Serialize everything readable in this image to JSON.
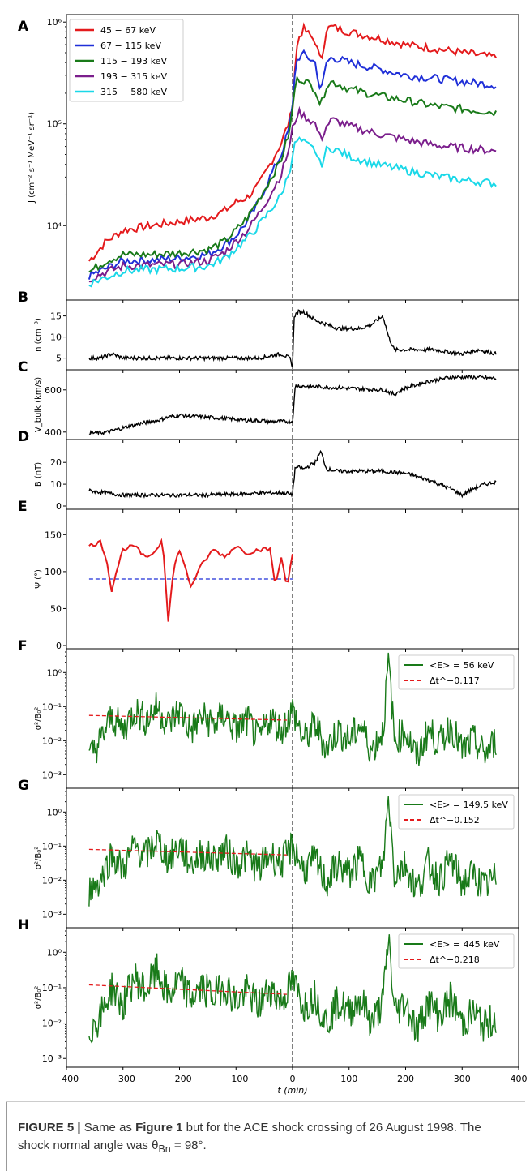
{
  "caption": {
    "label": "FIGURE 5 |",
    "text1": " Same as ",
    "ref": "Figure 1",
    "text2": " but for the ACE shock crossing of 26 August 1998. The shock normal angle was θ",
    "sub": "Bn",
    "text3": " = 98°."
  },
  "chart_data": [
    {
      "panel": "A",
      "type": "line",
      "yscale": "log",
      "ylabel": "J (cm⁻² s⁻¹ MeV⁻¹ sr⁻¹)",
      "ylim": [
        2000,
        1100000
      ],
      "xlim": [
        -400,
        400
      ],
      "yticks": [
        "10⁴",
        "10⁵",
        "10⁶"
      ],
      "legend_position": "top-left",
      "series": [
        {
          "name": "45 − 67 keV",
          "color": "#e41a1c",
          "x": [
            -360,
            -330,
            -300,
            -250,
            -200,
            -150,
            -120,
            -100,
            -80,
            -60,
            -40,
            -20,
            -5,
            0,
            5,
            10,
            20,
            40,
            50,
            60,
            70,
            100,
            150,
            200,
            250,
            300,
            360
          ],
          "y": [
            4500,
            7000,
            9000,
            10000,
            11000,
            12000,
            14000,
            17000,
            19000,
            25000,
            40000,
            65000,
            110000,
            150000,
            420000,
            700000,
            850000,
            650000,
            400000,
            850000,
            900000,
            800000,
            700000,
            600000,
            550000,
            500000,
            450000
          ]
        },
        {
          "name": "67 − 115 keV",
          "color": "#1f2fd8",
          "x": [
            -360,
            -330,
            -300,
            -250,
            -200,
            -150,
            -120,
            -100,
            -80,
            -60,
            -40,
            -20,
            -5,
            0,
            5,
            10,
            20,
            40,
            50,
            60,
            70,
            100,
            150,
            200,
            250,
            300,
            360
          ],
          "y": [
            3200,
            3800,
            4500,
            4600,
            4800,
            5200,
            6500,
            8000,
            11000,
            17000,
            30000,
            50000,
            95000,
            150000,
            380000,
            450000,
            480000,
            400000,
            200000,
            400000,
            450000,
            400000,
            350000,
            300000,
            280000,
            260000,
            240000
          ]
        },
        {
          "name": "115 − 193 keV",
          "color": "#197a19",
          "x": [
            -360,
            -330,
            -300,
            -250,
            -200,
            -150,
            -120,
            -100,
            -80,
            -60,
            -40,
            -20,
            -5,
            0,
            5,
            10,
            20,
            40,
            50,
            60,
            70,
            100,
            150,
            200,
            250,
            300,
            360
          ],
          "y": [
            3500,
            4500,
            5200,
            5200,
            5400,
            5800,
            7000,
            9000,
            12000,
            18000,
            28000,
            45000,
            85000,
            140000,
            250000,
            280000,
            270000,
            220000,
            150000,
            240000,
            260000,
            220000,
            190000,
            170000,
            150000,
            140000,
            130000
          ]
        },
        {
          "name": "193 − 315 keV",
          "color": "#7b1e8c",
          "x": [
            -360,
            -330,
            -300,
            -250,
            -200,
            -150,
            -120,
            -100,
            -80,
            -60,
            -40,
            -20,
            -5,
            0,
            5,
            10,
            20,
            40,
            50,
            60,
            70,
            100,
            150,
            200,
            250,
            300,
            360
          ],
          "y": [
            3000,
            3500,
            4000,
            4100,
            4200,
            4500,
            5500,
            7000,
            9000,
            13000,
            20000,
            32000,
            60000,
            90000,
            110000,
            130000,
            120000,
            100000,
            70000,
            95000,
            110000,
            95000,
            80000,
            70000,
            62000,
            58000,
            54000
          ]
        },
        {
          "name": "315 − 580 keV",
          "color": "#1ad8e8",
          "x": [
            -360,
            -330,
            -300,
            -250,
            -200,
            -150,
            -120,
            -100,
            -80,
            -60,
            -40,
            -20,
            -5,
            0,
            5,
            10,
            20,
            40,
            50,
            60,
            70,
            100,
            150,
            200,
            250,
            300,
            360
          ],
          "y": [
            2700,
            3100,
            3600,
            3700,
            3800,
            4000,
            4800,
            6000,
            7500,
            10000,
            14000,
            20000,
            35000,
            50000,
            65000,
            70000,
            65000,
            55000,
            38000,
            55000,
            58000,
            48000,
            40000,
            35000,
            31000,
            28000,
            26000
          ]
        }
      ]
    },
    {
      "panel": "B",
      "type": "line",
      "ylabel": "n (cm⁻³)",
      "ylim": [
        3,
        18
      ],
      "yticks": [
        5,
        10,
        15
      ],
      "series": [
        {
          "color": "#000000",
          "x": [
            -360,
            -340,
            -320,
            -300,
            -260,
            -220,
            -180,
            -140,
            -100,
            -60,
            -20,
            -5,
            0,
            3,
            10,
            20,
            40,
            60,
            80,
            100,
            120,
            140,
            160,
            170,
            180,
            200,
            250,
            300,
            330,
            360
          ],
          "y": [
            5,
            5,
            6,
            5,
            5,
            5,
            5,
            5,
            5,
            5,
            6,
            5,
            3,
            15,
            16,
            16,
            14,
            13,
            12,
            12,
            12,
            13,
            15,
            10,
            7,
            7,
            7,
            6,
            7,
            6
          ]
        }
      ]
    },
    {
      "panel": "C",
      "type": "line",
      "ylabel": "V_bulk (km/s)",
      "ylim": [
        380,
        680
      ],
      "yticks": [
        400,
        600
      ],
      "series": [
        {
          "color": "#000000",
          "x": [
            -360,
            -330,
            -300,
            -270,
            -240,
            -220,
            -200,
            -180,
            -150,
            -120,
            -100,
            -80,
            -60,
            -40,
            -20,
            -2,
            0,
            5,
            40,
            80,
            120,
            160,
            180,
            200,
            240,
            280,
            320,
            360
          ],
          "y": [
            395,
            398,
            420,
            440,
            455,
            470,
            480,
            475,
            470,
            465,
            460,
            455,
            455,
            450,
            450,
            450,
            450,
            620,
            615,
            610,
            605,
            600,
            580,
            610,
            640,
            660,
            660,
            655
          ]
        }
      ]
    },
    {
      "panel": "D",
      "type": "line",
      "ylabel": "B (nT)",
      "ylim": [
        0,
        29
      ],
      "yticks": [
        0,
        10,
        20
      ],
      "series": [
        {
          "color": "#000000",
          "x": [
            -360,
            -330,
            -300,
            -250,
            -200,
            -150,
            -100,
            -50,
            -10,
            -2,
            0,
            5,
            20,
            40,
            50,
            60,
            80,
            120,
            160,
            200,
            240,
            260,
            280,
            300,
            320,
            340,
            360
          ],
          "y": [
            7,
            6,
            5,
            5,
            5,
            5,
            5.5,
            6,
            6,
            5,
            6,
            18,
            17,
            20,
            25,
            17,
            16,
            16,
            16,
            15,
            12,
            10,
            8,
            5,
            8,
            10,
            11
          ]
        }
      ]
    },
    {
      "panel": "E",
      "type": "line",
      "ylabel": "Ψ (°)",
      "ylim": [
        0,
        180
      ],
      "yticks": [
        0,
        50,
        100,
        150
      ],
      "reference_line": {
        "y": 90,
        "color": "#1f2fd8",
        "style": "dashed"
      },
      "series": [
        {
          "color": "#e41a1c",
          "x": [
            -360,
            -340,
            -330,
            -320,
            -310,
            -300,
            -280,
            -260,
            -240,
            -230,
            -220,
            -210,
            -200,
            -180,
            -160,
            -140,
            -120,
            -100,
            -80,
            -60,
            -40,
            -30,
            -20,
            -10,
            0
          ],
          "y": [
            135,
            140,
            120,
            75,
            105,
            130,
            135,
            118,
            130,
            145,
            35,
            105,
            130,
            80,
            110,
            130,
            120,
            135,
            125,
            130,
            130,
            80,
            120,
            80,
            125
          ]
        }
      ]
    },
    {
      "panel": "F",
      "type": "line",
      "yscale": "log",
      "ylabel": "σ²/B₀²",
      "ylim": [
        0.0005,
        4
      ],
      "yticks": [
        "10⁻³",
        "10⁻²",
        "10⁻¹",
        "10⁰"
      ],
      "legend_position": "top-right",
      "series": [
        {
          "name": "<E> = 56 keV",
          "color": "#197a19",
          "x": [
            -360,
            -340,
            -320,
            -300,
            -280,
            -260,
            -240,
            -220,
            -200,
            -180,
            -160,
            -140,
            -120,
            -100,
            -80,
            -60,
            -40,
            -20,
            0,
            20,
            40,
            60,
            80,
            100,
            120,
            140,
            160,
            170,
            180,
            200,
            220,
            240,
            260,
            280,
            300,
            320,
            340,
            360
          ],
          "y": [
            0.003,
            0.01,
            0.05,
            0.02,
            0.08,
            0.04,
            0.1,
            0.03,
            0.08,
            0.02,
            0.05,
            0.03,
            0.06,
            0.02,
            0.04,
            0.01,
            0.05,
            0.02,
            0.08,
            0.01,
            0.03,
            0.006,
            0.02,
            0.01,
            0.03,
            0.005,
            0.02,
            2.5,
            0.01,
            0.02,
            0.003,
            0.02,
            0.008,
            0.03,
            0.005,
            0.01,
            0.004,
            0.01
          ]
        },
        {
          "name": "Δt^−0.117",
          "color": "#e41a1c",
          "style": "dashed",
          "x": [
            -360,
            -10
          ],
          "y": [
            0.055,
            0.04
          ]
        }
      ]
    },
    {
      "panel": "G",
      "type": "line",
      "yscale": "log",
      "ylabel": "σ²/B₀²",
      "ylim": [
        0.0005,
        4
      ],
      "yticks": [
        "10⁻³",
        "10⁻²",
        "10⁻¹",
        "10⁰"
      ],
      "legend_position": "top-right",
      "series": [
        {
          "name": "<E> = 149.5 keV",
          "color": "#197a19",
          "x": [
            -360,
            -340,
            -320,
            -300,
            -280,
            -260,
            -240,
            -220,
            -200,
            -180,
            -160,
            -140,
            -120,
            -100,
            -80,
            -60,
            -40,
            -20,
            0,
            20,
            40,
            60,
            80,
            100,
            120,
            140,
            160,
            170,
            180,
            200,
            220,
            240,
            260,
            280,
            300,
            320,
            340,
            360
          ],
          "y": [
            0.005,
            0.01,
            0.06,
            0.02,
            0.1,
            0.05,
            0.15,
            0.04,
            0.1,
            0.03,
            0.06,
            0.04,
            0.08,
            0.03,
            0.05,
            0.02,
            0.06,
            0.03,
            0.1,
            0.02,
            0.04,
            0.008,
            0.03,
            0.015,
            0.04,
            0.008,
            0.03,
            3,
            0.015,
            0.03,
            0.005,
            0.03,
            0.01,
            0.04,
            0.008,
            0.015,
            0.006,
            0.012
          ]
        },
        {
          "name": "Δt^−0.152",
          "color": "#e41a1c",
          "style": "dashed",
          "x": [
            -360,
            -10
          ],
          "y": [
            0.08,
            0.055
          ]
        }
      ]
    },
    {
      "panel": "H",
      "type": "line",
      "yscale": "log",
      "ylabel": "σ²/B₀²",
      "ylim": [
        0.0007,
        4
      ],
      "yticks": [
        "10⁻³",
        "10⁻²",
        "10⁻¹",
        "10⁰"
      ],
      "xlabel": "t (min)",
      "xlim": [
        -400,
        400
      ],
      "xticks": [
        "−400",
        "−300",
        "−200",
        "−100",
        "0",
        "100",
        "200",
        "300",
        "400"
      ],
      "legend_position": "top-right",
      "series": [
        {
          "name": "<E> = 445 keV",
          "color": "#197a19",
          "x": [
            -360,
            -340,
            -320,
            -300,
            -280,
            -260,
            -240,
            -220,
            -200,
            -180,
            -160,
            -140,
            -120,
            -100,
            -80,
            -60,
            -40,
            -20,
            0,
            20,
            40,
            60,
            80,
            100,
            120,
            140,
            160,
            170,
            180,
            200,
            220,
            240,
            260,
            280,
            300,
            320,
            340,
            360
          ],
          "y": [
            0.006,
            0.015,
            0.1,
            0.03,
            0.2,
            0.08,
            0.3,
            0.06,
            0.15,
            0.05,
            0.1,
            0.06,
            0.12,
            0.04,
            0.08,
            0.03,
            0.1,
            0.04,
            0.15,
            0.03,
            0.06,
            0.01,
            0.04,
            0.02,
            0.05,
            0.01,
            0.04,
            3,
            0.02,
            0.04,
            0.006,
            0.04,
            0.015,
            0.05,
            0.01,
            0.02,
            0.008,
            0.015
          ]
        },
        {
          "name": "Δt^−0.218",
          "color": "#e41a1c",
          "style": "dashed",
          "x": [
            -360,
            -10
          ],
          "y": [
            0.12,
            0.065
          ]
        }
      ]
    }
  ]
}
